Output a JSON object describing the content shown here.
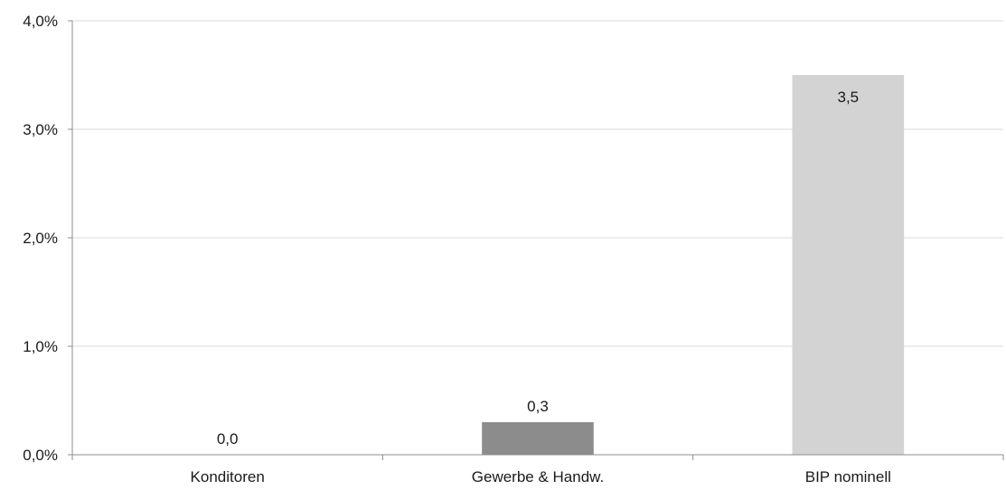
{
  "chart_data": {
    "type": "bar",
    "title": "",
    "xlabel": "",
    "ylabel": "",
    "categories": [
      "Konditoren",
      "Gewerbe & Handw.",
      "BIP nominell"
    ],
    "values": [
      0.0,
      0.3,
      3.5
    ],
    "data_labels": [
      "0,0",
      "0,3",
      "3,5"
    ],
    "ylim": [
      0,
      4
    ],
    "yticks": [
      0,
      1,
      2,
      3,
      4
    ],
    "ytick_labels": [
      "0,0%",
      "1,0%",
      "2,0%",
      "3,0%",
      "4,0%"
    ],
    "grid": true,
    "legend": "none",
    "colors": {
      "bars": [
        "#8c8c8c",
        "#8c8c8c",
        "#d3d3d3"
      ],
      "grid": "#d9d9d9",
      "axis": "#8c8c8c",
      "text": "#1a1a1a"
    }
  }
}
